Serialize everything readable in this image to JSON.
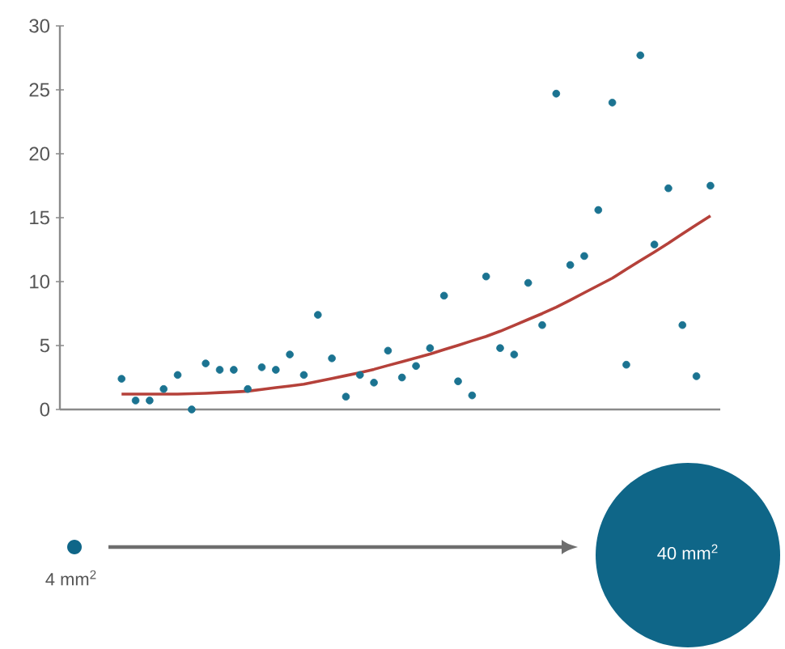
{
  "chart_data": {
    "type": "scatter",
    "categories": [
      null,
      null,
      null,
      null,
      null,
      null,
      null,
      null,
      null,
      null,
      null,
      null,
      null,
      null,
      null,
      null,
      null,
      null,
      null,
      null,
      null,
      null,
      null,
      null,
      null,
      null,
      null,
      null,
      null,
      null,
      null,
      null,
      null,
      null,
      null,
      null,
      null,
      null,
      null,
      null,
      null,
      null,
      null
    ],
    "series": [
      {
        "type": "scatter",
        "color": "#1b7391",
        "marker": "circle",
        "values": [
          2.4,
          0.7,
          0.7,
          1.6,
          2.7,
          0.0,
          3.6,
          3.1,
          3.1,
          1.6,
          3.3,
          3.1,
          4.3,
          2.7,
          7.4,
          4.0,
          1.0,
          2.7,
          2.1,
          4.6,
          2.5,
          3.4,
          4.8,
          8.9,
          2.2,
          1.1,
          10.4,
          4.8,
          4.3,
          9.9,
          6.6,
          24.7,
          11.3,
          12.0,
          15.6,
          24.0,
          3.5,
          27.7,
          12.9,
          17.3,
          6.6,
          2.6,
          17.5
        ]
      },
      {
        "type": "line",
        "color": "#b5413a",
        "marker": "none",
        "line_style": "solid",
        "values": [
          1.2,
          1.2,
          1.2,
          1.2,
          1.2,
          1.23,
          1.27,
          1.32,
          1.37,
          1.43,
          1.57,
          1.71,
          1.84,
          1.98,
          2.2,
          2.42,
          2.65,
          2.88,
          3.14,
          3.44,
          3.74,
          4.03,
          4.33,
          4.68,
          5.02,
          5.37,
          5.71,
          6.12,
          6.58,
          7.04,
          7.5,
          8.0,
          8.55,
          9.13,
          9.7,
          10.27,
          10.96,
          11.65,
          12.31,
          13.0,
          13.73,
          14.44,
          15.14
        ]
      }
    ],
    "ylim": [
      0,
      30
    ],
    "yticks": [
      0,
      5,
      10,
      15,
      20,
      25,
      30
    ],
    "tick_labels": "y",
    "annotations": [
      "4 mm$^{2}$",
      "40 mm$^{2}$"
    ]
  }
}
